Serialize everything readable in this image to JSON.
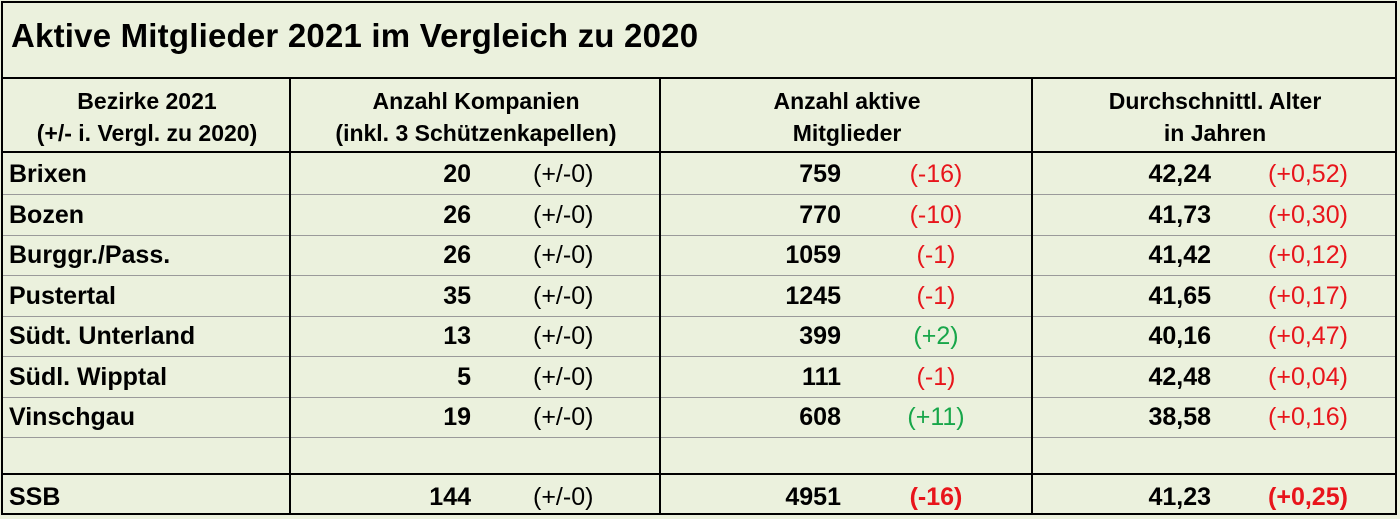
{
  "title": "Aktive Mitglieder 2021 im Vergleich zu 2020",
  "headers": {
    "col1_line1": "Bezirke 2021",
    "col1_line2": "(+/- i. Vergl. zu 2020)",
    "col2_line1": "Anzahl Kompanien",
    "col2_line2": "(inkl. 3 Schützenkapellen)",
    "col3_line1": "Anzahl aktive",
    "col3_line2": "Mitglieder",
    "col4_line1": "Durchschnittl. Alter",
    "col4_line2": "in Jahren"
  },
  "rows": [
    {
      "district": "Brixen",
      "companies": "20",
      "companies_delta": "(+/-0)",
      "members": "759",
      "members_delta": "(-16)",
      "age": "42,24",
      "age_delta": "(+0,52)"
    },
    {
      "district": "Bozen",
      "companies": "26",
      "companies_delta": "(+/-0)",
      "members": "770",
      "members_delta": "(-10)",
      "age": "41,73",
      "age_delta": "(+0,30)"
    },
    {
      "district": "Burggr./Pass.",
      "companies": "26",
      "companies_delta": "(+/-0)",
      "members": "1059",
      "members_delta": "(-1)",
      "age": "41,42",
      "age_delta": "(+0,12)"
    },
    {
      "district": "Pustertal",
      "companies": "35",
      "companies_delta": "(+/-0)",
      "members": "1245",
      "members_delta": "(-1)",
      "age": "41,65",
      "age_delta": "(+0,17)"
    },
    {
      "district": "Südt. Unterland",
      "companies": "13",
      "companies_delta": "(+/-0)",
      "members": "399",
      "members_delta": "(+2)",
      "age": "40,16",
      "age_delta": "(+0,47)"
    },
    {
      "district": "Südl. Wipptal",
      "companies": "5",
      "companies_delta": "(+/-0)",
      "members": "111",
      "members_delta": "(-1)",
      "age": "42,48",
      "age_delta": "(+0,04)"
    },
    {
      "district": "Vinschgau",
      "companies": "19",
      "companies_delta": "(+/-0)",
      "members": "608",
      "members_delta": "(+11)",
      "age": "38,58",
      "age_delta": "(+0,16)"
    }
  ],
  "total": {
    "district": "SSB",
    "companies": "144",
    "companies_delta": "(+/-0)",
    "members": "4951",
    "members_delta": "(-16)",
    "age": "41,23",
    "age_delta": "(+0,25)"
  },
  "colors": {
    "background": "#ebf1dd",
    "negative": "#e8151b",
    "positive": "#18a64a"
  }
}
